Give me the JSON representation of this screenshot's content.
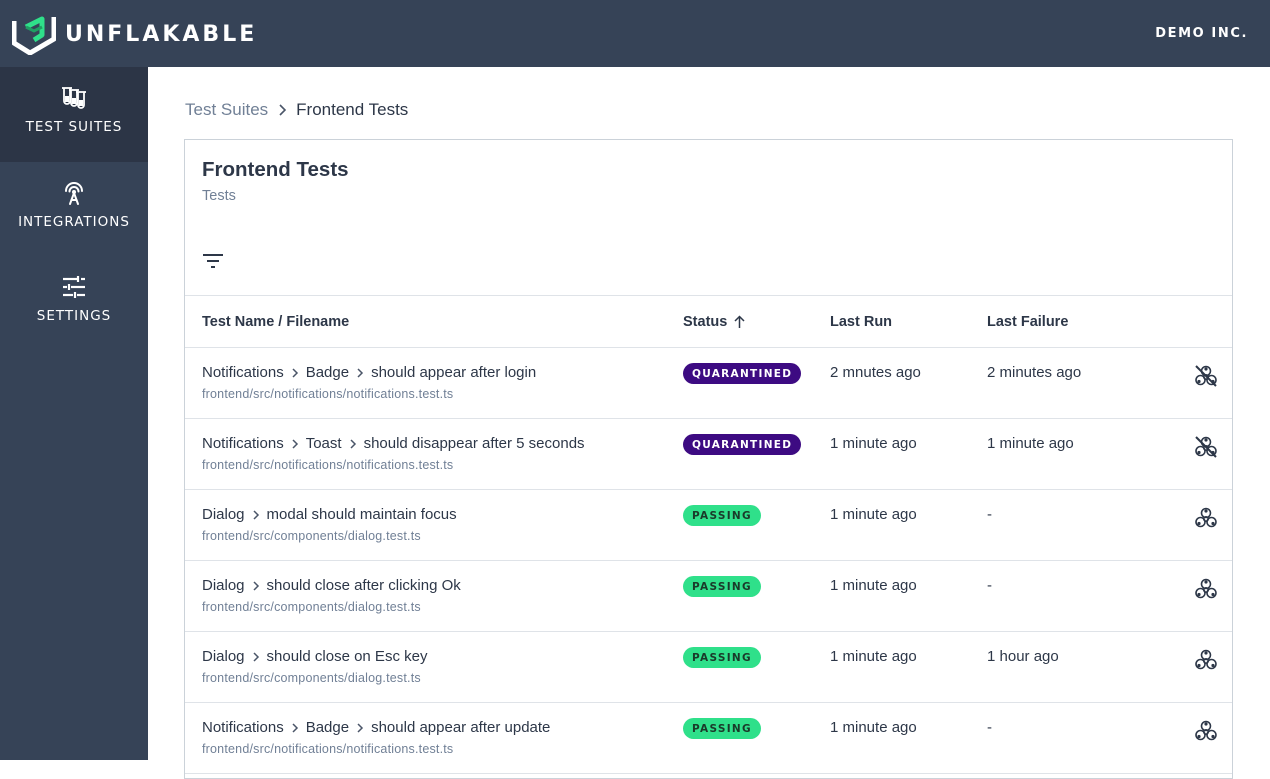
{
  "app": {
    "brand": "UNFLAKABLE",
    "org": "DEMO INC."
  },
  "sidebar": {
    "items": [
      {
        "label": "TEST SUITES",
        "icon": "test-tubes-icon",
        "active": true
      },
      {
        "label": "INTEGRATIONS",
        "icon": "antenna-icon",
        "active": false
      },
      {
        "label": "SETTINGS",
        "icon": "sliders-icon",
        "active": false
      }
    ]
  },
  "breadcrumb": {
    "parent": "Test Suites",
    "current": "Frontend Tests"
  },
  "card": {
    "title": "Frontend Tests",
    "subtitle": "Tests"
  },
  "table": {
    "headers": {
      "name": "Test Name / Filename",
      "status": "Status",
      "last_run": "Last Run",
      "last_failure": "Last Failure"
    },
    "sort": {
      "column": "Status",
      "direction": "ascending"
    },
    "rows": [
      {
        "path": [
          "Notifications",
          "Badge",
          "should appear after login"
        ],
        "file": "frontend/src/notifications/notifications.test.ts",
        "status": "QUARANTINED",
        "last_run": "2 mnutes ago",
        "last_failure": "2 minutes ago",
        "action_icon": "biohazard-crossed-icon"
      },
      {
        "path": [
          "Notifications",
          "Toast",
          "should disappear after 5 seconds"
        ],
        "file": "frontend/src/notifications/notifications.test.ts",
        "status": "QUARANTINED",
        "last_run": "1 minute ago",
        "last_failure": "1 minute ago",
        "action_icon": "biohazard-crossed-icon"
      },
      {
        "path": [
          "Dialog",
          "modal should maintain focus"
        ],
        "file": "frontend/src/components/dialog.test.ts",
        "status": "PASSING",
        "last_run": "1 minute ago",
        "last_failure": "-",
        "action_icon": "biohazard-icon"
      },
      {
        "path": [
          "Dialog",
          "should close after clicking Ok"
        ],
        "file": "frontend/src/components/dialog.test.ts",
        "status": "PASSING",
        "last_run": "1 minute ago",
        "last_failure": "-",
        "action_icon": "biohazard-icon"
      },
      {
        "path": [
          "Dialog",
          "should close on Esc key"
        ],
        "file": "frontend/src/components/dialog.test.ts",
        "status": "PASSING",
        "last_run": "1 minute ago",
        "last_failure": "1 hour ago",
        "action_icon": "biohazard-icon"
      },
      {
        "path": [
          "Notifications",
          "Badge",
          "should appear after update"
        ],
        "file": "frontend/src/notifications/notifications.test.ts",
        "status": "PASSING",
        "last_run": "1 minute ago",
        "last_failure": "-",
        "action_icon": "biohazard-icon"
      }
    ]
  },
  "colors": {
    "topbar": "#364357",
    "sidebar_active": "#2c3546",
    "quarantined": "#3d0b82",
    "passing": "#2fe08a",
    "brand_accent": "#2fe08a"
  }
}
